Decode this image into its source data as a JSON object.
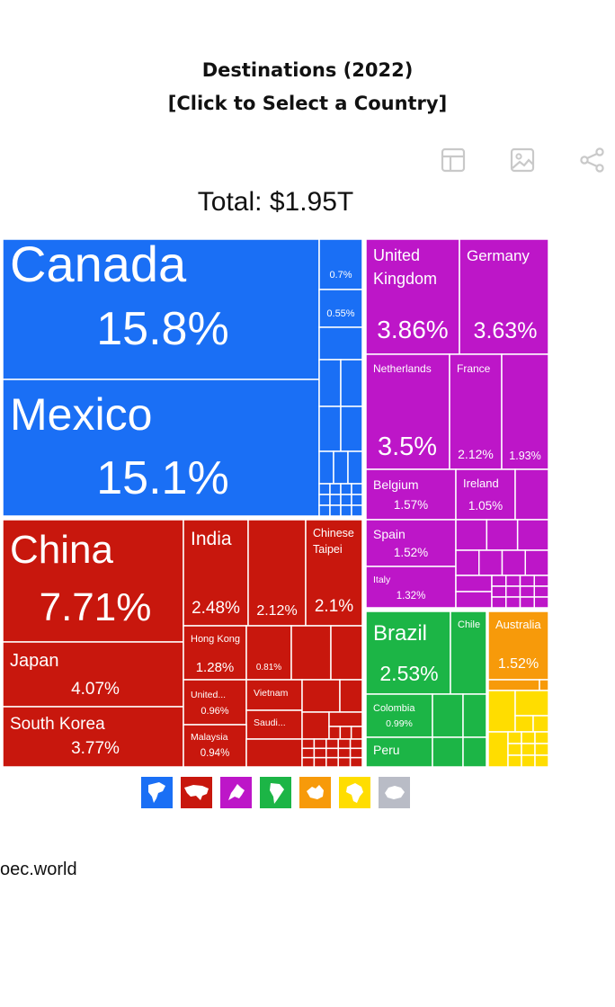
{
  "header": {
    "title_line1": "Destinations (2022)",
    "title_line2": "[Click to Select a Country]"
  },
  "toolbar": {
    "table_icon": "table-icon",
    "image_icon": "image-icon",
    "share_icon": "share-icon"
  },
  "total_label": "Total: $1.95T",
  "footer": {
    "source": "oec.world"
  },
  "colors": {
    "north_america": "#1a6ff5",
    "asia": "#c8170d",
    "europe": "#bd16c8",
    "south_america": "#1cb546",
    "oceania": "#f79a0a",
    "africa": "#ffdd00",
    "antarctica": "#b9bcc6",
    "border": "#ffffff"
  },
  "legend": [
    {
      "name": "north-america",
      "icon": "north-america-icon",
      "color": "#1a6ff5"
    },
    {
      "name": "asia",
      "icon": "asia-icon",
      "color": "#c8170d"
    },
    {
      "name": "europe",
      "icon": "europe-icon",
      "color": "#bd16c8"
    },
    {
      "name": "south-america",
      "icon": "south-america-icon",
      "color": "#1cb546"
    },
    {
      "name": "oceania",
      "icon": "oceania-icon",
      "color": "#f79a0a"
    },
    {
      "name": "africa",
      "icon": "africa-icon",
      "color": "#ffdd00"
    },
    {
      "name": "antarctica",
      "icon": "antarctica-icon",
      "color": "#b9bcc6"
    }
  ],
  "chart_data": {
    "type": "treemap",
    "title": "Destinations (2022)",
    "subtitle": "[Click to Select a Country]",
    "total": "$1.95T",
    "unit": "% of total exports",
    "groups": [
      {
        "continent": "North America",
        "items": [
          {
            "label": "Canada",
            "value": 15.8,
            "value_label": "15.8%"
          },
          {
            "label": "Mexico",
            "value": 15.1,
            "value_label": "15.1%"
          },
          {
            "label": "",
            "value": 0.7,
            "value_label": "0.7%"
          },
          {
            "label": "",
            "value": 0.55,
            "value_label": "0.55%"
          }
        ]
      },
      {
        "continent": "Asia",
        "items": [
          {
            "label": "China",
            "value": 7.71,
            "value_label": "7.71%"
          },
          {
            "label": "Japan",
            "value": 4.07,
            "value_label": "4.07%"
          },
          {
            "label": "South Korea",
            "value": 3.77,
            "value_label": "3.77%"
          },
          {
            "label": "India",
            "value": 2.48,
            "value_label": "2.48%"
          },
          {
            "label": "",
            "value": 2.12,
            "value_label": "2.12%"
          },
          {
            "label": "Chinese Taipei",
            "value": 2.1,
            "value_label": "2.1%"
          },
          {
            "label": "Hong Kong",
            "value": 1.28,
            "value_label": "1.28%"
          },
          {
            "label": "",
            "value": 0.81,
            "value_label": "0.81%"
          },
          {
            "label": "United...",
            "value": 0.96,
            "value_label": "0.96%"
          },
          {
            "label": "Vietnam",
            "value": null,
            "value_label": ""
          },
          {
            "label": "Saudi...",
            "value": null,
            "value_label": ""
          },
          {
            "label": "Malaysia",
            "value": 0.94,
            "value_label": "0.94%"
          }
        ]
      },
      {
        "continent": "Europe",
        "items": [
          {
            "label": "United Kingdom",
            "value": 3.86,
            "value_label": "3.86%"
          },
          {
            "label": "Germany",
            "value": 3.63,
            "value_label": "3.63%"
          },
          {
            "label": "Netherlands",
            "value": 3.5,
            "value_label": "3.5%"
          },
          {
            "label": "France",
            "value": 2.12,
            "value_label": "2.12%"
          },
          {
            "label": "",
            "value": 1.93,
            "value_label": "1.93%"
          },
          {
            "label": "Belgium",
            "value": 1.57,
            "value_label": "1.57%"
          },
          {
            "label": "Ireland",
            "value": 1.05,
            "value_label": "1.05%"
          },
          {
            "label": "Spain",
            "value": 1.52,
            "value_label": "1.52%"
          },
          {
            "label": "Italy",
            "value": 1.32,
            "value_label": "1.32%"
          }
        ]
      },
      {
        "continent": "South America",
        "items": [
          {
            "label": "Brazil",
            "value": 2.53,
            "value_label": "2.53%"
          },
          {
            "label": "Chile",
            "value": null,
            "value_label": ""
          },
          {
            "label": "Colombia",
            "value": 0.99,
            "value_label": "0.99%"
          },
          {
            "label": "Peru",
            "value": null,
            "value_label": ""
          }
        ]
      },
      {
        "continent": "Oceania",
        "items": [
          {
            "label": "Australia",
            "value": 1.52,
            "value_label": "1.52%"
          }
        ]
      },
      {
        "continent": "Africa",
        "items": []
      }
    ]
  }
}
